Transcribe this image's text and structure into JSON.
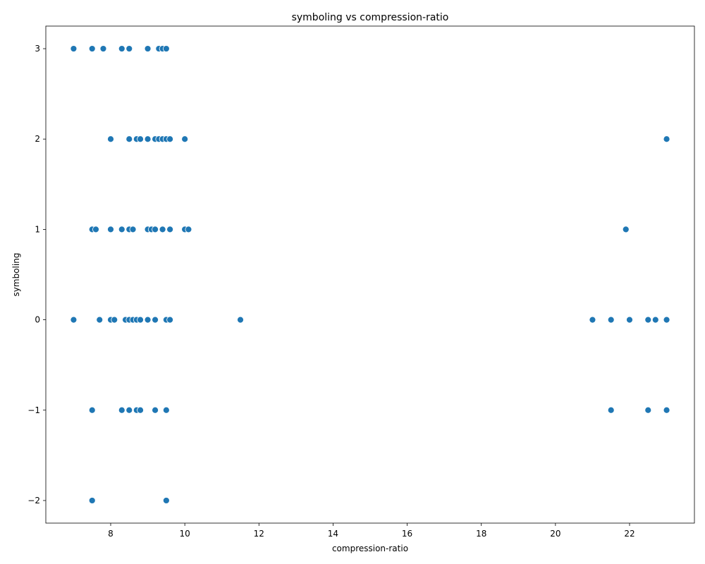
{
  "chart_data": {
    "type": "scatter",
    "title": "symboling vs compression-ratio",
    "xlabel": "compression-ratio",
    "ylabel": "symboling",
    "xlim": [
      6.25,
      23.75
    ],
    "ylim": [
      -2.25,
      3.25
    ],
    "xticks": [
      8,
      10,
      12,
      14,
      16,
      18,
      20,
      22
    ],
    "yticks": [
      -2,
      -1,
      0,
      1,
      2,
      3
    ],
    "xtick_labels": [
      "8",
      "10",
      "12",
      "14",
      "16",
      "18",
      "20",
      "22"
    ],
    "ytick_labels": [
      "−2",
      "−1",
      "0",
      "1",
      "2",
      "3"
    ],
    "grid": false,
    "marker_color": "#1f77b4",
    "points": [
      {
        "x": 7.0,
        "y": 3
      },
      {
        "x": 7.5,
        "y": 3
      },
      {
        "x": 7.8,
        "y": 3
      },
      {
        "x": 8.3,
        "y": 3
      },
      {
        "x": 8.5,
        "y": 3
      },
      {
        "x": 9.0,
        "y": 3
      },
      {
        "x": 9.3,
        "y": 3
      },
      {
        "x": 9.4,
        "y": 3
      },
      {
        "x": 9.5,
        "y": 3
      },
      {
        "x": 8.0,
        "y": 2
      },
      {
        "x": 8.5,
        "y": 2
      },
      {
        "x": 8.7,
        "y": 2
      },
      {
        "x": 8.8,
        "y": 2
      },
      {
        "x": 9.0,
        "y": 2
      },
      {
        "x": 9.2,
        "y": 2
      },
      {
        "x": 9.3,
        "y": 2
      },
      {
        "x": 9.4,
        "y": 2
      },
      {
        "x": 9.5,
        "y": 2
      },
      {
        "x": 9.6,
        "y": 2
      },
      {
        "x": 10.0,
        "y": 2
      },
      {
        "x": 23.0,
        "y": 2
      },
      {
        "x": 7.5,
        "y": 1
      },
      {
        "x": 7.6,
        "y": 1
      },
      {
        "x": 8.0,
        "y": 1
      },
      {
        "x": 8.3,
        "y": 1
      },
      {
        "x": 8.5,
        "y": 1
      },
      {
        "x": 8.6,
        "y": 1
      },
      {
        "x": 9.0,
        "y": 1
      },
      {
        "x": 9.1,
        "y": 1
      },
      {
        "x": 9.2,
        "y": 1
      },
      {
        "x": 9.4,
        "y": 1
      },
      {
        "x": 9.6,
        "y": 1
      },
      {
        "x": 10.0,
        "y": 1
      },
      {
        "x": 10.1,
        "y": 1
      },
      {
        "x": 21.9,
        "y": 1
      },
      {
        "x": 7.0,
        "y": 0
      },
      {
        "x": 7.7,
        "y": 0
      },
      {
        "x": 8.0,
        "y": 0
      },
      {
        "x": 8.1,
        "y": 0
      },
      {
        "x": 8.4,
        "y": 0
      },
      {
        "x": 8.5,
        "y": 0
      },
      {
        "x": 8.6,
        "y": 0
      },
      {
        "x": 8.7,
        "y": 0
      },
      {
        "x": 8.8,
        "y": 0
      },
      {
        "x": 9.0,
        "y": 0
      },
      {
        "x": 9.2,
        "y": 0
      },
      {
        "x": 9.5,
        "y": 0
      },
      {
        "x": 9.6,
        "y": 0
      },
      {
        "x": 11.5,
        "y": 0
      },
      {
        "x": 21.0,
        "y": 0
      },
      {
        "x": 21.5,
        "y": 0
      },
      {
        "x": 22.0,
        "y": 0
      },
      {
        "x": 22.5,
        "y": 0
      },
      {
        "x": 22.7,
        "y": 0
      },
      {
        "x": 23.0,
        "y": 0
      },
      {
        "x": 7.5,
        "y": -1
      },
      {
        "x": 8.3,
        "y": -1
      },
      {
        "x": 8.5,
        "y": -1
      },
      {
        "x": 8.7,
        "y": -1
      },
      {
        "x": 8.8,
        "y": -1
      },
      {
        "x": 9.2,
        "y": -1
      },
      {
        "x": 9.5,
        "y": -1
      },
      {
        "x": 21.5,
        "y": -1
      },
      {
        "x": 22.5,
        "y": -1
      },
      {
        "x": 23.0,
        "y": -1
      },
      {
        "x": 7.5,
        "y": -2
      },
      {
        "x": 9.5,
        "y": -2
      }
    ]
  }
}
